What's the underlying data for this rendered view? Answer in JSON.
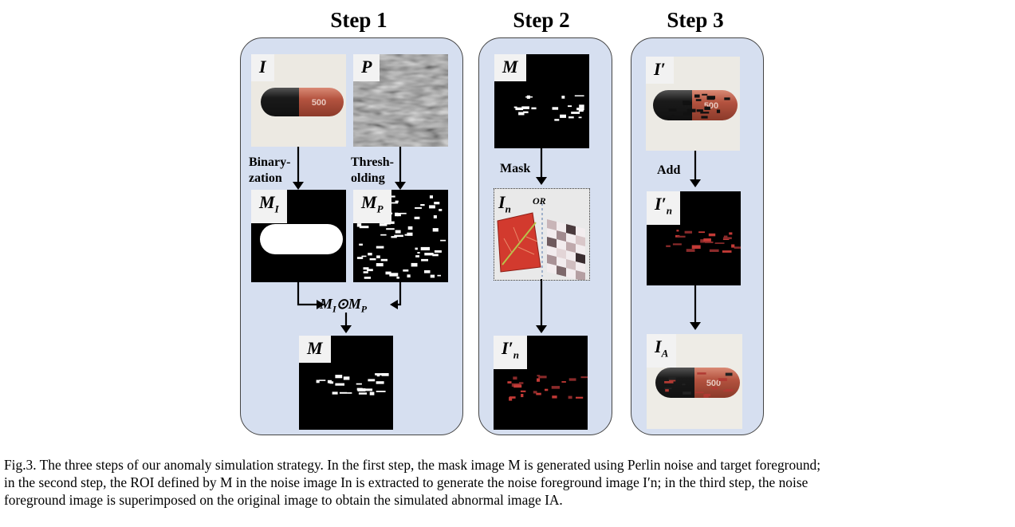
{
  "steps": {
    "step1": "Step 1",
    "step2": "Step 2",
    "step3": "Step 3"
  },
  "step1": {
    "image_I": "I",
    "image_P": "P",
    "binarization": "Binary-\nzation",
    "thresholding": "Thresh-\nolding",
    "mask_MI": "M",
    "mask_MI_sub": "I",
    "mask_MP": "M",
    "mask_MP_sub": "P",
    "product": "M_I ⊙ M_P",
    "mask_M": "M"
  },
  "step2": {
    "mask_M": "M",
    "mask_label": "Mask",
    "noise_In": "I",
    "noise_In_sub": "n",
    "or_label": "OR",
    "result": "I′",
    "result_sub": "n"
  },
  "step3": {
    "image_Iprime": "I′",
    "add_label": "Add",
    "noise_fg": "I′",
    "noise_fg_sub": "n",
    "result": "I",
    "result_sub": "A"
  },
  "pill_text": "500",
  "colors": {
    "panel": "#d6dff0",
    "capsule_dark": "#1b1b1b",
    "capsule_red": "#b4533f",
    "leaf_red": "#d23a2e"
  },
  "caption": {
    "line1": "Fig.3. The three steps of our anomaly simulation strategy. In the first step, the mask image M is generated using Perlin noise and target foreground;",
    "line2": "in the second step, the ROI defined by M in the noise image In is extracted to generate the noise foreground image I′n; in the third step, the noise",
    "line3": "foreground image is superimposed on the original image to obtain the simulated abnormal image IA."
  }
}
